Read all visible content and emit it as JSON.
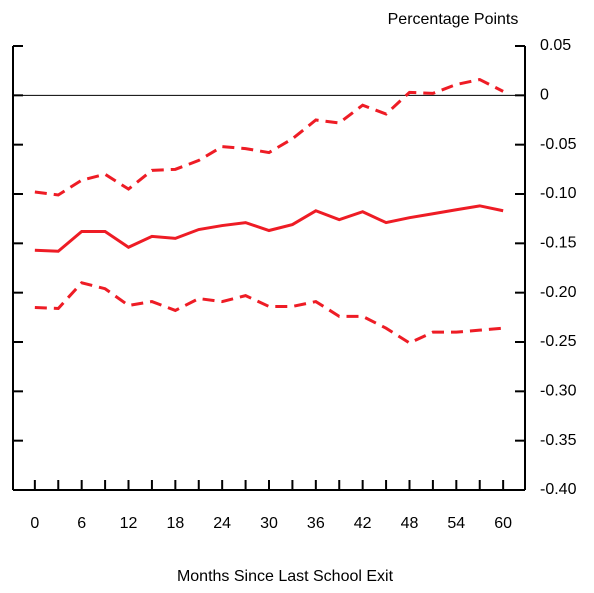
{
  "chart_data": {
    "type": "line",
    "title": "Percentage Points",
    "x_label": "Months Since Last School Exit",
    "x": [
      0,
      3,
      6,
      9,
      12,
      15,
      18,
      21,
      24,
      27,
      30,
      33,
      36,
      39,
      42,
      45,
      48,
      51,
      54,
      57,
      60
    ],
    "series": [
      {
        "color": "#ee1c25",
        "dash": false,
        "values": [
          -0.157,
          -0.158,
          -0.138,
          -0.138,
          -0.154,
          -0.143,
          -0.145,
          -0.136,
          -0.132,
          -0.129,
          -0.137,
          -0.131,
          -0.117,
          -0.126,
          -0.118,
          -0.129,
          -0.124,
          -0.12,
          -0.116,
          -0.112,
          -0.117
        ]
      },
      {
        "color": "#ee1c25",
        "dash": true,
        "values": [
          -0.098,
          -0.101,
          -0.086,
          -0.08,
          -0.095,
          -0.076,
          -0.075,
          -0.066,
          -0.052,
          -0.054,
          -0.058,
          -0.044,
          -0.025,
          -0.028,
          -0.01,
          -0.019,
          0.003,
          0.002,
          0.011,
          0.016,
          0.004
        ]
      },
      {
        "color": "#ee1c25",
        "dash": true,
        "values": [
          -0.215,
          -0.216,
          -0.19,
          -0.196,
          -0.213,
          -0.209,
          -0.218,
          -0.206,
          -0.209,
          -0.203,
          -0.214,
          -0.214,
          -0.209,
          -0.224,
          -0.224,
          -0.236,
          -0.251,
          -0.24,
          -0.24,
          -0.238,
          -0.236
        ]
      }
    ],
    "xlim": [
      -2.8,
      62.8
    ],
    "xticks": [
      0,
      6,
      12,
      18,
      24,
      30,
      36,
      42,
      48,
      54,
      60
    ],
    "xminorticks": [
      3,
      9,
      15,
      21,
      27,
      33,
      39,
      45,
      51,
      57
    ],
    "ylim": [
      -0.4,
      0.05
    ],
    "yticks": [
      0.05,
      0,
      -0.05,
      {
        "value": -0.1,
        "label": "-0.10"
      },
      -0.15,
      {
        "value": -0.2,
        "label": "-0.20"
      },
      -0.25,
      {
        "value": -0.3,
        "label": "-0.30"
      },
      -0.35,
      {
        "value": -0.4,
        "label": "-0.40"
      }
    ],
    "hline": 0
  }
}
